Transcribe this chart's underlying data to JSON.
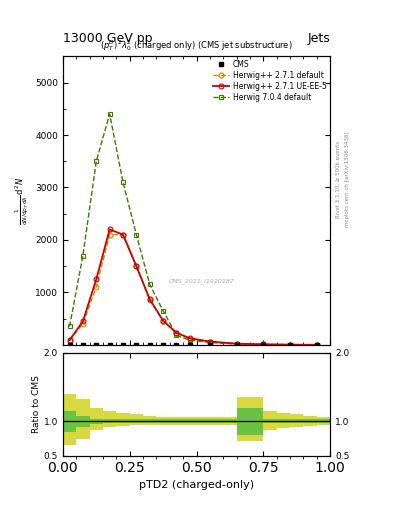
{
  "title_top": "13000 GeV pp",
  "title_right": "Jets",
  "plot_title": "$(p_T^D)^2\\lambda_0^2$ (charged only) (CMS jet substructure)",
  "xlabel": "pTD2 (charged-only)",
  "ylabel_ratio": "Ratio to CMS",
  "right_label1": "Rivet 3.1.10, ≥ 500k events",
  "right_label2": "mcplots.cern.ch [arXiv:1306.3436]",
  "watermark": "CMS_2021_I1920187",
  "x_data": [
    0.025,
    0.075,
    0.125,
    0.175,
    0.225,
    0.275,
    0.325,
    0.375,
    0.425,
    0.475,
    0.55,
    0.65,
    0.75,
    0.85,
    0.95
  ],
  "cms_y": [
    0,
    0,
    0,
    0,
    0,
    0,
    0,
    0,
    0,
    0,
    0,
    0,
    0,
    0,
    0
  ],
  "herwig271d_y": [
    80,
    400,
    1100,
    2100,
    2100,
    1500,
    850,
    450,
    220,
    120,
    60,
    20,
    8,
    3,
    1
  ],
  "herwig271ueee5_y": [
    90,
    450,
    1250,
    2200,
    2100,
    1500,
    870,
    460,
    230,
    125,
    62,
    22,
    9,
    3,
    1
  ],
  "herwig704d_y": [
    350,
    1700,
    3500,
    4400,
    3100,
    2100,
    1150,
    650,
    180,
    90,
    45,
    15,
    7,
    2,
    1
  ],
  "ratio_bins": [
    0.0,
    0.05,
    0.1,
    0.15,
    0.2,
    0.25,
    0.3,
    0.35,
    0.4,
    0.45,
    0.5,
    0.55,
    0.6,
    0.65,
    0.7,
    0.75,
    0.8,
    0.85,
    0.9,
    0.95,
    1.0
  ],
  "ratio_green_lo": [
    0.85,
    0.92,
    0.96,
    0.97,
    0.97,
    0.97,
    0.97,
    0.97,
    0.97,
    0.97,
    0.97,
    0.97,
    0.97,
    0.8,
    0.8,
    0.97,
    0.97,
    0.97,
    0.97,
    0.97
  ],
  "ratio_green_hi": [
    1.15,
    1.08,
    1.04,
    1.03,
    1.03,
    1.03,
    1.03,
    1.03,
    1.03,
    1.03,
    1.03,
    1.03,
    1.03,
    1.2,
    1.2,
    1.03,
    1.03,
    1.03,
    1.03,
    1.03
  ],
  "ratio_yellow_lo": [
    0.65,
    0.75,
    0.88,
    0.92,
    0.93,
    0.94,
    0.95,
    0.95,
    0.95,
    0.95,
    0.95,
    0.95,
    0.95,
    0.72,
    0.72,
    0.88,
    0.9,
    0.92,
    0.93,
    0.95
  ],
  "ratio_yellow_hi": [
    1.4,
    1.32,
    1.2,
    1.15,
    1.12,
    1.1,
    1.08,
    1.07,
    1.06,
    1.06,
    1.06,
    1.06,
    1.06,
    1.35,
    1.35,
    1.15,
    1.12,
    1.1,
    1.08,
    1.06
  ],
  "color_cms": "#000000",
  "color_h271d": "#cc8800",
  "color_h271ueee5": "#cc0000",
  "color_h704d": "#447700",
  "color_green": "#44bb44",
  "color_yellow": "#cccc00",
  "xlim": [
    0.0,
    1.0
  ],
  "ylim_main": [
    0,
    5500
  ],
  "ylim_ratio": [
    0.5,
    2.0
  ],
  "yticks_main": [
    1000,
    2000,
    3000,
    4000,
    5000
  ],
  "ytick_labels_main": [
    "1000",
    "2000",
    "3000",
    "4000",
    "5000"
  ],
  "yticks_ratio": [
    0.5,
    1.0,
    2.0
  ],
  "xticks": [
    0.0,
    0.25,
    0.5,
    0.75,
    1.0
  ]
}
